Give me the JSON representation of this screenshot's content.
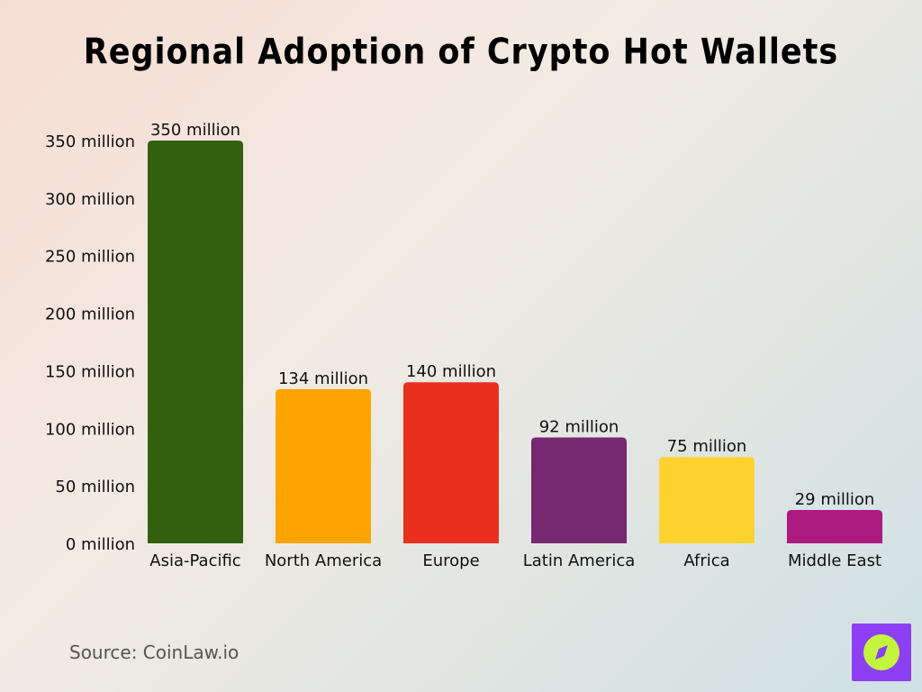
{
  "chart_data": {
    "type": "bar",
    "title": "Regional Adoption of Crypto Hot Wallets",
    "categories": [
      "Asia-Pacific",
      "North America",
      "Europe",
      "Latin America",
      "Africa",
      "Middle East"
    ],
    "values": [
      350,
      134,
      140,
      92,
      75,
      29
    ],
    "data_labels": [
      "350 million",
      "134 million",
      "140 million",
      "92 million",
      "75 million",
      "29 million"
    ],
    "colors": [
      "#33600f",
      "#fda403",
      "#e9301f",
      "#762870",
      "#fed330",
      "#ac1b80"
    ],
    "yticks": [
      0,
      50,
      100,
      150,
      200,
      250,
      300,
      350
    ],
    "ytick_labels": [
      "0 million",
      "50 million",
      "100 million",
      "150 million",
      "200 million",
      "250 million",
      "300 million",
      "350 million"
    ],
    "ylim": [
      0,
      350
    ],
    "xlabel": "",
    "ylabel": "",
    "grid": false
  },
  "source": "Source: CoinLaw.io",
  "logo": {
    "icon": "compass-icon",
    "bg": "#8d3ff3",
    "circle": "#c3f53c"
  }
}
